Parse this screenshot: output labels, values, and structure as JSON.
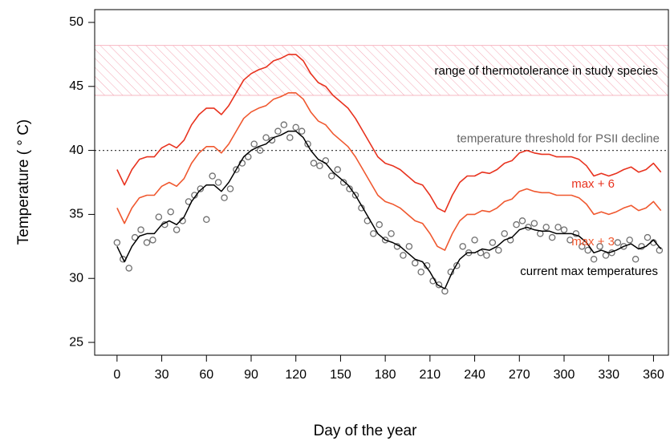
{
  "chart_data": {
    "type": "line",
    "xlabel": "Day of the year",
    "ylabel": "Temperature ( ° C)",
    "xlim": [
      -15,
      370
    ],
    "ylim": [
      24,
      51
    ],
    "xticks": [
      0,
      30,
      60,
      90,
      120,
      150,
      180,
      210,
      240,
      270,
      300,
      330,
      360
    ],
    "yticks": [
      25,
      30,
      35,
      40,
      45,
      50
    ],
    "x": [
      0,
      5,
      10,
      15,
      20,
      25,
      30,
      35,
      40,
      45,
      50,
      55,
      60,
      65,
      70,
      75,
      80,
      85,
      90,
      95,
      100,
      105,
      110,
      115,
      120,
      125,
      130,
      135,
      140,
      145,
      150,
      155,
      160,
      165,
      170,
      175,
      180,
      185,
      190,
      195,
      200,
      205,
      210,
      215,
      220,
      225,
      230,
      235,
      240,
      245,
      250,
      255,
      260,
      265,
      270,
      275,
      280,
      285,
      290,
      295,
      300,
      305,
      310,
      315,
      320,
      325,
      330,
      335,
      340,
      345,
      350,
      355,
      360,
      365
    ],
    "series": [
      {
        "name": "current max temperatures",
        "color": "#000000",
        "values": [
          32.5,
          31.3,
          32.5,
          33.3,
          33.5,
          33.5,
          34.2,
          34.5,
          34.2,
          34.8,
          36,
          36.8,
          37.3,
          37.3,
          36.8,
          37.5,
          38.5,
          39.5,
          40,
          40.3,
          40.5,
          41,
          41.2,
          41.5,
          41.5,
          41,
          40,
          39.3,
          39,
          38.3,
          37.8,
          37.3,
          36.5,
          35.5,
          34.5,
          33.5,
          33,
          32.8,
          32.5,
          32,
          31.5,
          31.3,
          30.5,
          29.5,
          29.2,
          30.5,
          31.5,
          32,
          32,
          32.3,
          32.2,
          32.5,
          33,
          33.2,
          33.8,
          34,
          33.8,
          33.7,
          33.7,
          33.5,
          33.5,
          33.5,
          33.3,
          32.8,
          32,
          32.2,
          32,
          32.2,
          32.5,
          32.7,
          32.3,
          32.5,
          33,
          32.3
        ]
      },
      {
        "name": "max + 3",
        "color": "#f0582f",
        "values": [
          35.5,
          34.3,
          35.5,
          36.3,
          36.5,
          36.5,
          37.2,
          37.5,
          37.2,
          37.8,
          39,
          39.8,
          40.3,
          40.3,
          39.8,
          40.5,
          41.5,
          42.5,
          43,
          43.3,
          43.5,
          44,
          44.2,
          44.5,
          44.5,
          44,
          43,
          42.3,
          42,
          41.3,
          40.8,
          40.3,
          39.5,
          38.5,
          37.5,
          36.5,
          36,
          35.8,
          35.5,
          35,
          34.5,
          34.3,
          33.5,
          32.5,
          32.2,
          33.5,
          34.5,
          35,
          35,
          35.3,
          35.2,
          35.5,
          36,
          36.2,
          36.8,
          37,
          36.8,
          36.7,
          36.7,
          36.5,
          36.5,
          36.5,
          36.3,
          35.8,
          35,
          35.2,
          35,
          35.2,
          35.5,
          35.7,
          35.3,
          35.5,
          36,
          35.3
        ]
      },
      {
        "name": "max + 6",
        "color": "#e8321e",
        "values": [
          38.5,
          37.3,
          38.5,
          39.3,
          39.5,
          39.5,
          40.2,
          40.5,
          40.2,
          40.8,
          42,
          42.8,
          43.3,
          43.3,
          42.8,
          43.5,
          44.5,
          45.5,
          46,
          46.3,
          46.5,
          47,
          47.2,
          47.5,
          47.5,
          47,
          46,
          45.3,
          45,
          44.3,
          43.8,
          43.3,
          42.5,
          41.5,
          40.5,
          39.5,
          39,
          38.8,
          38.5,
          38,
          37.5,
          37.3,
          36.5,
          35.5,
          35.2,
          36.5,
          37.5,
          38,
          38,
          38.3,
          38.2,
          38.5,
          39,
          39.2,
          39.8,
          40,
          39.8,
          39.7,
          39.7,
          39.5,
          39.5,
          39.5,
          39.3,
          38.8,
          38,
          38.2,
          38,
          38.2,
          38.5,
          38.7,
          38.3,
          38.5,
          39,
          38.3
        ]
      }
    ],
    "points": {
      "color": "#707070",
      "x": [
        0,
        4,
        8,
        12,
        16,
        20,
        24,
        28,
        32,
        36,
        40,
        44,
        48,
        52,
        56,
        60,
        64,
        68,
        72,
        76,
        80,
        84,
        88,
        92,
        96,
        100,
        104,
        108,
        112,
        116,
        120,
        124,
        128,
        132,
        136,
        140,
        144,
        148,
        152,
        156,
        160,
        164,
        168,
        172,
        176,
        180,
        184,
        188,
        192,
        196,
        200,
        204,
        208,
        212,
        216,
        220,
        224,
        228,
        232,
        236,
        240,
        244,
        248,
        252,
        256,
        260,
        264,
        268,
        272,
        276,
        280,
        284,
        288,
        292,
        296,
        300,
        304,
        308,
        312,
        316,
        320,
        324,
        328,
        332,
        336,
        340,
        344,
        348,
        352,
        356,
        360,
        364
      ],
      "values": [
        32.8,
        31.5,
        30.8,
        33.2,
        33.8,
        32.8,
        33,
        34.8,
        34.2,
        35.2,
        33.8,
        34.5,
        36,
        36.5,
        37,
        34.6,
        38,
        37.5,
        36.3,
        37,
        38.5,
        39,
        39.5,
        40.5,
        40,
        41,
        40.8,
        41.5,
        42,
        41,
        41.8,
        41.5,
        40.5,
        39,
        38.8,
        39.2,
        38,
        38.5,
        37.5,
        37,
        36.5,
        35.5,
        34.5,
        33.5,
        34.2,
        33,
        33.5,
        32.5,
        31.8,
        32.5,
        31.2,
        30.5,
        31,
        29.8,
        29.5,
        29,
        30.5,
        31,
        32.5,
        32,
        33,
        32,
        31.8,
        32.8,
        32.2,
        33.5,
        33,
        34.2,
        34.5,
        34,
        34.3,
        33.5,
        34,
        33.2,
        34,
        33.8,
        33,
        33.5,
        32.5,
        32.2,
        31.5,
        32.5,
        31.8,
        32,
        32.8,
        32.5,
        33,
        31.5,
        32.5,
        33.2,
        32.8,
        32.2
      ]
    },
    "band": {
      "label": "range of thermotolerance in study species",
      "range": [
        44.3,
        48.2
      ],
      "color": "#f4a6b4"
    },
    "threshold": {
      "label": "temperature threshold for PSII decline",
      "value": 40,
      "color": "#444444"
    }
  }
}
